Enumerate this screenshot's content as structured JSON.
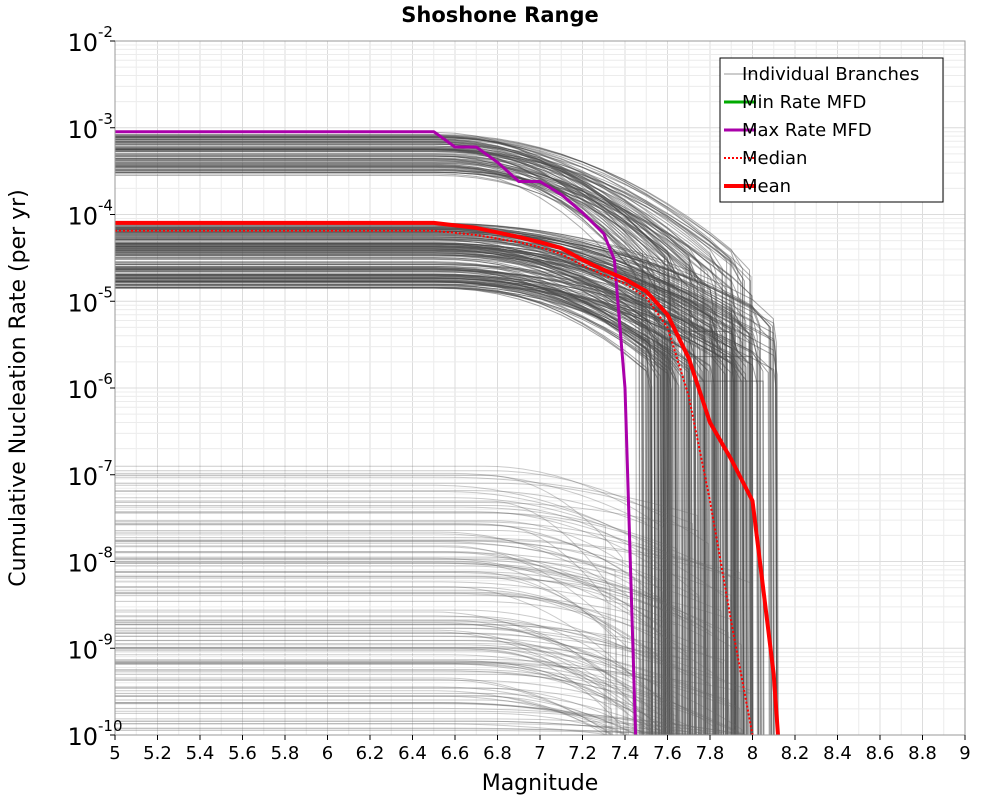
{
  "chart_data": {
    "type": "line",
    "title": "Shoshone Range",
    "xlabel": "Magnitude",
    "ylabel": "Cumulative Nucleation Rate (per yr)",
    "xlim": [
      5,
      9
    ],
    "ylim": [
      1e-10,
      0.01
    ],
    "yscale": "log",
    "grid": true,
    "legend_position": "top-right",
    "x_ticks": [
      "5",
      "5.2",
      "5.4",
      "5.6",
      "5.8",
      "6",
      "6.2",
      "6.4",
      "6.6",
      "6.8",
      "7",
      "7.2",
      "7.4",
      "7.6",
      "7.8",
      "8",
      "8.2",
      "8.4",
      "8.6",
      "8.8",
      "9"
    ],
    "y_ticks": [
      {
        "base": "10",
        "exp": "-10"
      },
      {
        "base": "10",
        "exp": "-9"
      },
      {
        "base": "10",
        "exp": "-8"
      },
      {
        "base": "10",
        "exp": "-7"
      },
      {
        "base": "10",
        "exp": "-6"
      },
      {
        "base": "10",
        "exp": "-5"
      },
      {
        "base": "10",
        "exp": "-4"
      },
      {
        "base": "10",
        "exp": "-3"
      },
      {
        "base": "10",
        "exp": "-2"
      }
    ],
    "series": [
      {
        "name": "Individual Branches",
        "color": "#555555",
        "style": "thin",
        "note_branch_count": "many (hundreds)",
        "approx_rate_range_at_M5": [
          1.5e-10,
          0.001
        ]
      },
      {
        "name": "Min Rate MFD",
        "color": "#00aa00",
        "style": "solid",
        "x": [],
        "y": []
      },
      {
        "name": "Max Rate MFD",
        "color": "#aa00aa",
        "style": "solid",
        "x": [
          5.0,
          6.5,
          6.6,
          6.7,
          6.8,
          6.9,
          7.0,
          7.1,
          7.2,
          7.3,
          7.35,
          7.4,
          7.45
        ],
        "y": [
          0.0009,
          0.0009,
          0.0006,
          0.0006,
          0.0004,
          0.00024,
          0.00024,
          0.00017,
          0.000105,
          6e-05,
          3e-05,
          1e-06,
          1e-10
        ]
      },
      {
        "name": "Median",
        "color": "#ff0000",
        "style": "dotted",
        "x": [
          5.0,
          6.5,
          6.7,
          6.9,
          7.0,
          7.1,
          7.2,
          7.3,
          7.4,
          7.5,
          7.6,
          7.7,
          7.8,
          7.9,
          8.0
        ],
        "y": [
          6.5e-05,
          6.5e-05,
          5.8e-05,
          4.8e-05,
          4.2e-05,
          3.5e-05,
          2.6e-05,
          2e-05,
          1.6e-05,
          1.1e-05,
          5e-06,
          8e-07,
          5e-08,
          2e-09,
          1e-10
        ]
      },
      {
        "name": "Mean",
        "color": "#ff0000",
        "style": "thick",
        "x": [
          5.0,
          6.5,
          6.7,
          6.9,
          7.0,
          7.1,
          7.2,
          7.3,
          7.4,
          7.5,
          7.6,
          7.7,
          7.8,
          7.9,
          8.0,
          8.1,
          8.12
        ],
        "y": [
          8e-05,
          8e-05,
          7e-05,
          5.5e-05,
          4.8e-05,
          4.1e-05,
          3e-05,
          2.3e-05,
          1.8e-05,
          1.3e-05,
          7e-06,
          2.2e-06,
          4e-07,
          1.5e-07,
          5e-08,
          5e-10,
          1e-10
        ]
      }
    ]
  }
}
